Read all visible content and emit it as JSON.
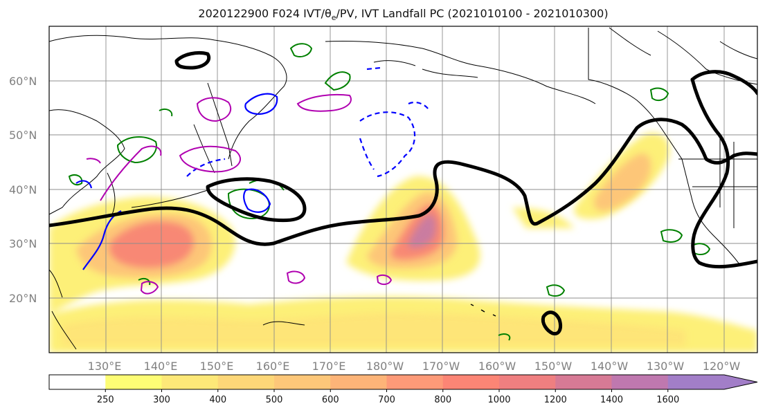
{
  "header": {
    "title_prefix": "2020122900 F024 IVT/θ",
    "title_sub": "e",
    "title_suffix": "/PV, IVT Landfall PC (2021010100 - 2021010300)"
  },
  "map": {
    "lat_labels": [
      "60°N",
      "50°N",
      "40°N",
      "30°N",
      "20°N"
    ],
    "lon_labels": [
      "130°E",
      "140°E",
      "150°E",
      "160°E",
      "170°E",
      "180°W",
      "170°W",
      "160°W",
      "150°W",
      "140°W",
      "130°W",
      "120°W"
    ],
    "colors": {
      "coast": "#000000",
      "grid": "#8c8c8c",
      "pc_contour": "#000000",
      "theta_contour": "#008000",
      "pv_solid": "#0000ff",
      "pv_dashed": "#0000ff",
      "purple_contour": "#b000b0"
    }
  },
  "colorbar": {
    "ticks": [
      "250",
      "300",
      "400",
      "500",
      "600",
      "700",
      "800",
      "1000",
      "1200",
      "1400",
      "1600"
    ],
    "colors": [
      "#ffffff",
      "#fdfd75",
      "#fde878",
      "#fdd778",
      "#fdc779",
      "#fdb478",
      "#fd9a78",
      "#fc8575",
      "#ef7f80",
      "#d77a95",
      "#bf78af",
      "#a27ec8"
    ]
  }
}
